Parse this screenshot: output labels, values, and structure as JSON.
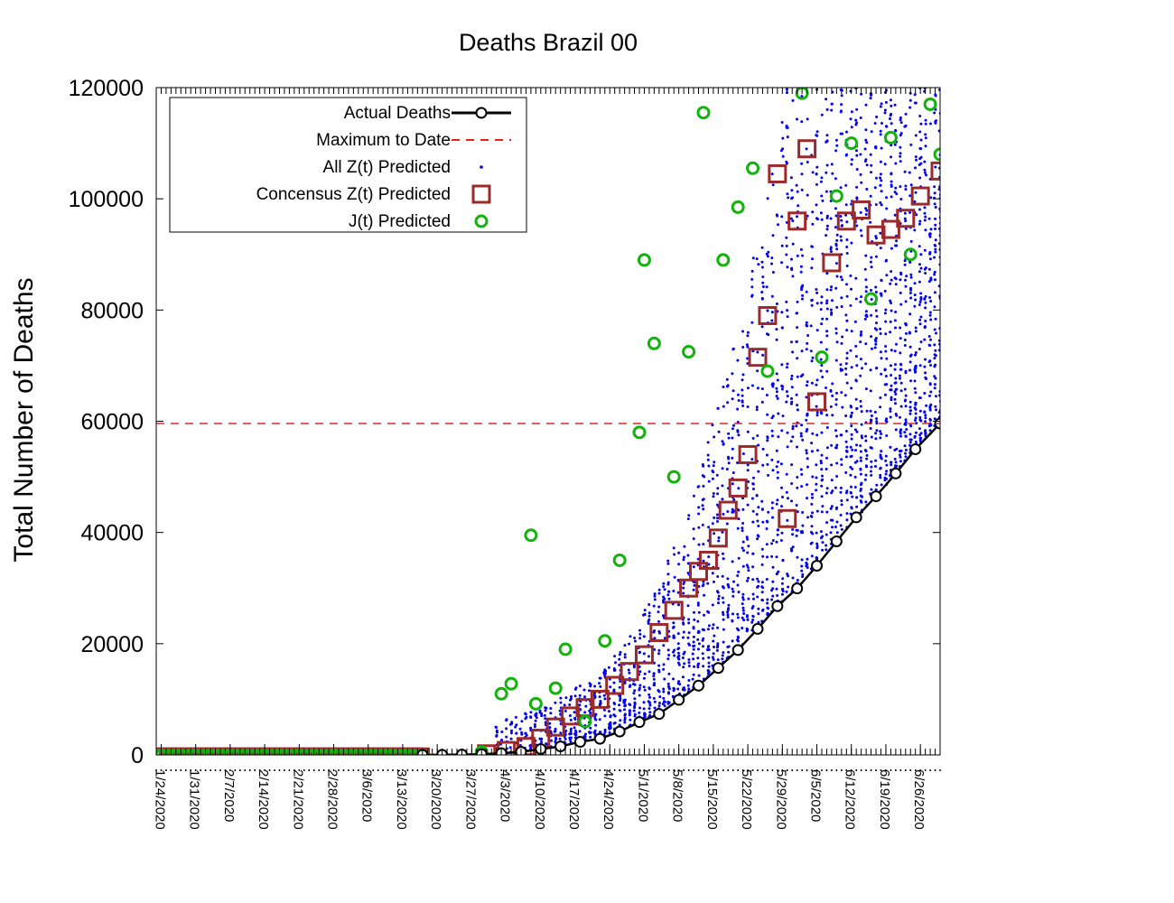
{
  "chart_data": {
    "type": "scatter",
    "title": "Deaths Brazil 00",
    "ylabel": "Total Number of Deaths",
    "xlabel": "",
    "xlim": [
      "1/23/2020",
      "6/30/2020"
    ],
    "ylim": [
      0,
      120000
    ],
    "yticks": [
      "0",
      "20000",
      "40000",
      "60000",
      "80000",
      "100000",
      "120000"
    ],
    "xticks": [
      "1/24/2020",
      "1/31/2020",
      "2/7/2020",
      "2/14/2020",
      "2/21/2020",
      "2/28/2020",
      "3/6/2020",
      "3/13/2020",
      "3/20/2020",
      "3/27/2020",
      "4/3/2020",
      "4/10/2020",
      "4/17/2020",
      "4/24/2020",
      "5/1/2020",
      "5/8/2020",
      "5/15/2020",
      "5/22/2020",
      "5/29/2020",
      "6/5/2020",
      "6/12/2020",
      "6/19/2020",
      "6/26/2020"
    ],
    "legend_position": "top-left",
    "grid": false,
    "colors": {
      "actual": "#000000",
      "maximum": "#e8231b",
      "all_z": "#0000ee",
      "consensus": "#9b2b2b",
      "j": "#13b20d"
    },
    "legend": [
      {
        "key": "actual",
        "label": "Actual Deaths"
      },
      {
        "key": "maximum",
        "label": "Maximum to Date"
      },
      {
        "key": "all_z",
        "label": "All Z(t) Predicted"
      },
      {
        "key": "consensus",
        "label": "Concensus Z(t) Predicted"
      },
      {
        "key": "j",
        "label": "J(t) Predicted"
      }
    ],
    "maximum_to_date": 59594,
    "series": [
      {
        "name": "Actual Deaths",
        "key": "actual",
        "x": [
          "3/17/2020",
          "3/21/2020",
          "3/25/2020",
          "3/29/2020",
          "4/2/2020",
          "4/6/2020",
          "4/10/2020",
          "4/14/2020",
          "4/18/2020",
          "4/22/2020",
          "4/26/2020",
          "4/30/2020",
          "5/4/2020",
          "5/8/2020",
          "5/12/2020",
          "5/16/2020",
          "5/20/2020",
          "5/24/2020",
          "5/28/2020",
          "6/1/2020",
          "6/5/2020",
          "6/9/2020",
          "6/13/2020",
          "6/17/2020",
          "6/21/2020",
          "6/25/2020",
          "6/30/2020"
        ],
        "y": [
          1,
          18,
          59,
          136,
          299,
          553,
          1056,
          1532,
          2347,
          2906,
          4205,
          5901,
          7367,
          9897,
          12461,
          15633,
          18859,
          22666,
          26754,
          29937,
          34021,
          38406,
          42720,
          46510,
          50617,
          54971,
          59594
        ]
      },
      {
        "name": "Concensus Z(t) Predicted",
        "key": "consensus",
        "x": [
          "3/30/2020",
          "4/3/2020",
          "4/7/2020",
          "4/10/2020",
          "4/13/2020",
          "4/16/2020",
          "4/19/2020",
          "4/22/2020",
          "4/25/2020",
          "4/28/2020",
          "5/1/2020",
          "5/4/2020",
          "5/7/2020",
          "5/10/2020",
          "5/12/2020",
          "5/14/2020",
          "5/16/2020",
          "5/18/2020",
          "5/20/2020",
          "5/22/2020",
          "5/24/2020",
          "5/26/2020",
          "5/28/2020",
          "5/30/2020",
          "6/1/2020",
          "6/3/2020",
          "6/5/2020",
          "6/8/2020",
          "6/11/2020",
          "6/14/2020",
          "6/17/2020",
          "6/20/2020",
          "6/23/2020",
          "6/26/2020",
          "6/30/2020"
        ],
        "y": [
          200,
          800,
          1500,
          3000,
          5000,
          7000,
          8500,
          10000,
          12500,
          15000,
          18000,
          22000,
          26000,
          30000,
          33000,
          35000,
          39000,
          44000,
          48000,
          54000,
          71500,
          79000,
          104500,
          42500,
          96000,
          109000,
          63500,
          88500,
          96000,
          98000,
          93500,
          94500,
          96500,
          100500,
          105000
        ]
      },
      {
        "name": "J(t) Predicted",
        "key": "j",
        "x": [
          "3/29/2020",
          "4/2/2020",
          "4/4/2020",
          "4/8/2020",
          "4/9/2020",
          "4/13/2020",
          "4/15/2020",
          "4/19/2020",
          "4/23/2020",
          "4/26/2020",
          "4/30/2020",
          "5/1/2020",
          "5/3/2020",
          "5/7/2020",
          "5/10/2020",
          "5/13/2020",
          "5/17/2020",
          "5/20/2020",
          "5/23/2020",
          "5/26/2020",
          "6/2/2020",
          "6/6/2020",
          "6/9/2020",
          "6/12/2020",
          "6/16/2020",
          "6/20/2020",
          "6/24/2020",
          "6/28/2020",
          "6/30/2020"
        ],
        "y": [
          500,
          11000,
          12800,
          39500,
          9200,
          12000,
          19000,
          6000,
          20500,
          35000,
          58000,
          89000,
          74000,
          50000,
          72500,
          115500,
          89000,
          98500,
          105500,
          69000,
          119000,
          71500,
          100500,
          110000,
          82000,
          111000,
          90000,
          117000,
          108000
        ]
      }
    ],
    "all_z_note": "dense field of small blue dots spread above the consensus values, from early April to end of June"
  }
}
